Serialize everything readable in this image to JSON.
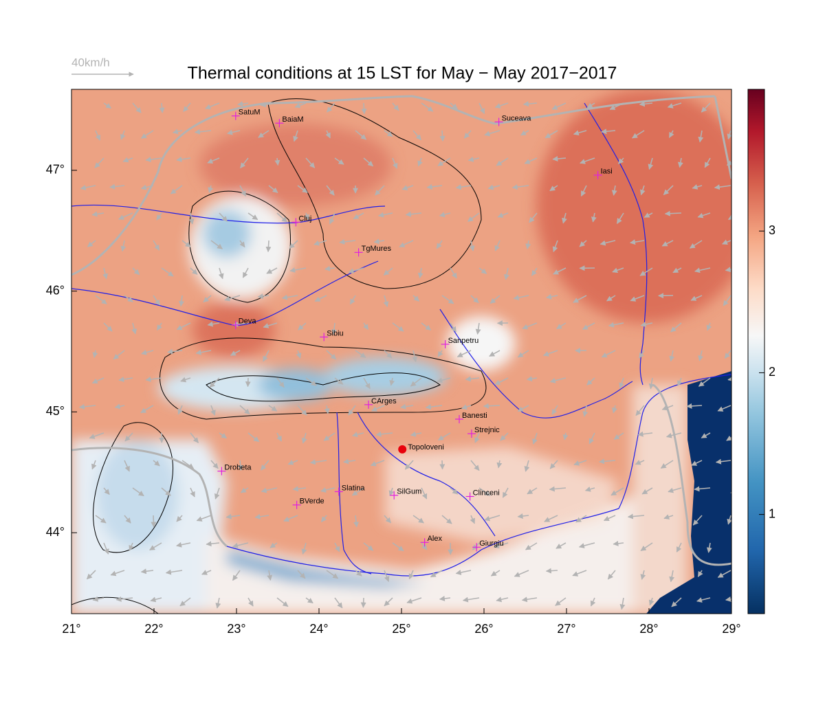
{
  "title": "Thermal conditions at 15 LST for May − May  2017−2017",
  "wind_legend": "40km/h",
  "map": {
    "xlim": [
      21,
      29
    ],
    "ylim": [
      43.33,
      47.67
    ],
    "xticks": [
      {
        "value": 21,
        "label": "21°"
      },
      {
        "value": 22,
        "label": "22°"
      },
      {
        "value": 23,
        "label": "23°"
      },
      {
        "value": 24,
        "label": "24°"
      },
      {
        "value": 25,
        "label": "25°"
      },
      {
        "value": 26,
        "label": "26°"
      },
      {
        "value": 27,
        "label": "27°"
      },
      {
        "value": 28,
        "label": "28°"
      },
      {
        "value": 29,
        "label": "29°"
      }
    ],
    "yticks": [
      {
        "value": 44,
        "label": "44°"
      },
      {
        "value": 45,
        "label": "45°"
      },
      {
        "value": 46,
        "label": "46°"
      },
      {
        "value": 47,
        "label": "47°"
      }
    ],
    "marker_color": "#e020e0"
  },
  "colorbar": {
    "lim": [
      0.3,
      4.0
    ],
    "ticks": [
      1,
      2,
      3
    ]
  },
  "cities": [
    {
      "name": "SatuM",
      "lon": 22.99,
      "lat": 47.45
    },
    {
      "name": "BaiaM",
      "lon": 23.52,
      "lat": 47.39
    },
    {
      "name": "Suceava",
      "lon": 26.18,
      "lat": 47.4
    },
    {
      "name": "Iasi",
      "lon": 27.38,
      "lat": 46.96
    },
    {
      "name": "Cluj",
      "lon": 23.72,
      "lat": 46.57
    },
    {
      "name": "TgMures",
      "lon": 24.48,
      "lat": 46.32
    },
    {
      "name": "Deva",
      "lon": 22.99,
      "lat": 45.72
    },
    {
      "name": "Sibiu",
      "lon": 24.06,
      "lat": 45.62
    },
    {
      "name": "Sanpetru",
      "lon": 25.53,
      "lat": 45.56
    },
    {
      "name": "CArges",
      "lon": 24.6,
      "lat": 45.06
    },
    {
      "name": "Banesti",
      "lon": 25.7,
      "lat": 44.94
    },
    {
      "name": "Strejnic",
      "lon": 25.85,
      "lat": 44.82
    },
    {
      "name": "Drobeta",
      "lon": 22.82,
      "lat": 44.51
    },
    {
      "name": "Slatina",
      "lon": 24.24,
      "lat": 44.34
    },
    {
      "name": "SilGum",
      "lon": 24.91,
      "lat": 44.31
    },
    {
      "name": "Clinceni",
      "lon": 25.83,
      "lat": 44.3
    },
    {
      "name": "BVerde",
      "lon": 23.73,
      "lat": 44.23
    },
    {
      "name": "Alex",
      "lon": 25.28,
      "lat": 43.92
    },
    {
      "name": "Giurgiu",
      "lon": 25.91,
      "lat": 43.88
    }
  ],
  "highlight": {
    "name": "Topoloveni",
    "lon": 25.01,
    "lat": 44.69,
    "color": "#e8000b"
  }
}
